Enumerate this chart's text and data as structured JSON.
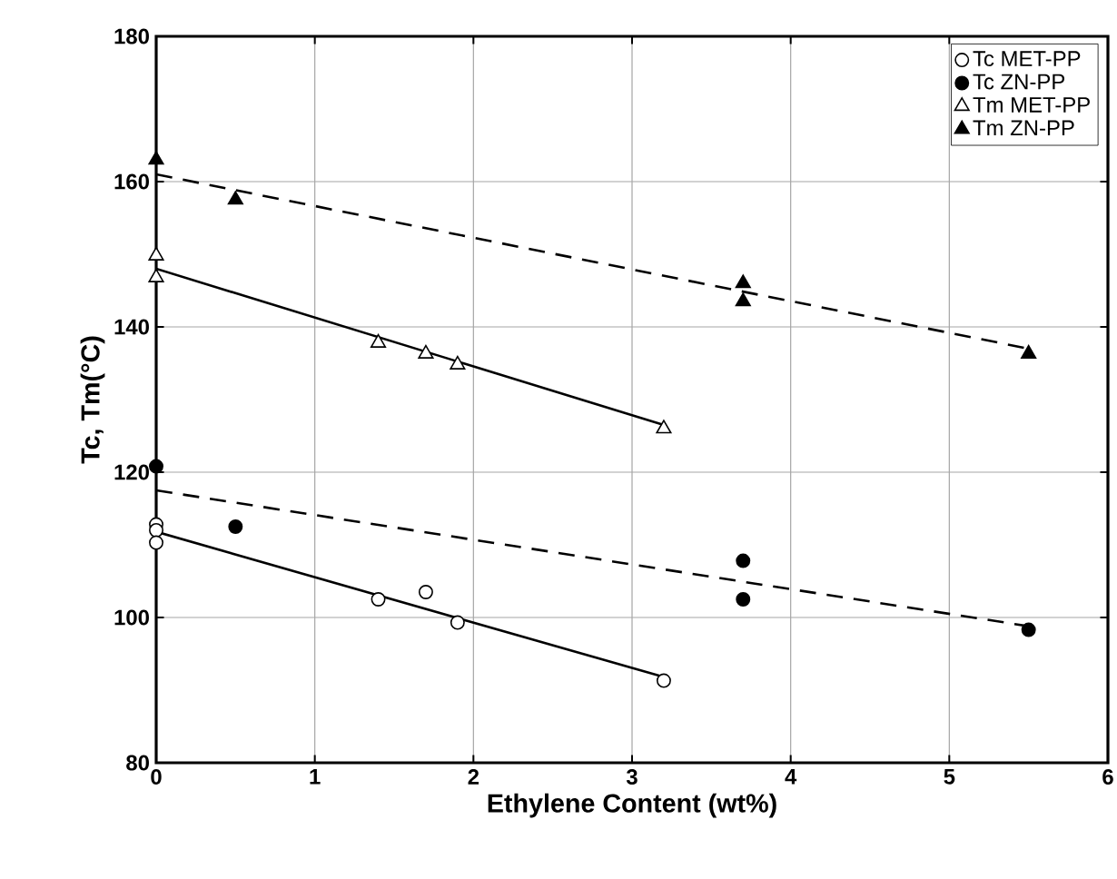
{
  "chart_data": {
    "type": "scatter",
    "xlabel": "Ethylene Content (wt%)",
    "ylabel": "Tc, Tm(°C)",
    "xlim": [
      0,
      6
    ],
    "ylim": [
      80,
      180
    ],
    "xticks": [
      0,
      1,
      2,
      3,
      4,
      5,
      6
    ],
    "yticks": [
      80,
      100,
      120,
      140,
      160,
      180
    ],
    "grid": true,
    "legend": "top right",
    "series": [
      {
        "name": "Tc MET-PP",
        "color": "#ffffff",
        "marker": "circle",
        "x": [
          0,
          0,
          0,
          1.4,
          1.7,
          1.9,
          3.2
        ],
        "values": [
          112.8,
          112,
          110.3,
          102.5,
          103.5,
          99.3,
          91.3
        ]
      },
      {
        "name": "Tc ZN-PP",
        "color": "#000000",
        "marker": "circle",
        "x": [
          0,
          0.5,
          3.7,
          3.7,
          5.5
        ],
        "values": [
          120.8,
          112.5,
          107.8,
          102.5,
          98.3
        ]
      },
      {
        "name": "Tm MET-PP",
        "color": "#ffffff",
        "marker": "triangle",
        "x": [
          0,
          0,
          1.4,
          1.7,
          1.9,
          3.2
        ],
        "values": [
          149.8,
          146.8,
          137.8,
          136.3,
          134.8,
          126
        ]
      },
      {
        "name": "Tm ZN-PP",
        "color": "#000000",
        "marker": "triangle",
        "x": [
          0,
          0.5,
          3.7,
          3.7,
          5.5
        ],
        "values": [
          163,
          157.5,
          146,
          143.5,
          136.3
        ]
      },
      {
        "type": "line",
        "color": "#000000",
        "line_style": "solid",
        "marker": "none",
        "x": [
          0,
          3.2
        ],
        "values": [
          111.8,
          91.8
        ]
      },
      {
        "type": "line",
        "color": "#000000",
        "line_style": "dashed",
        "marker": "none",
        "x": [
          0,
          5.5
        ],
        "values": [
          117.5,
          98.8
        ]
      },
      {
        "type": "line",
        "color": "#000000",
        "line_style": "solid",
        "marker": "none",
        "x": [
          0,
          3.2
        ],
        "values": [
          148,
          126.5
        ]
      },
      {
        "type": "line",
        "color": "#000000",
        "line_style": "dashed",
        "marker": "none",
        "x": [
          0,
          5.5
        ],
        "values": [
          161,
          137
        ]
      }
    ]
  }
}
